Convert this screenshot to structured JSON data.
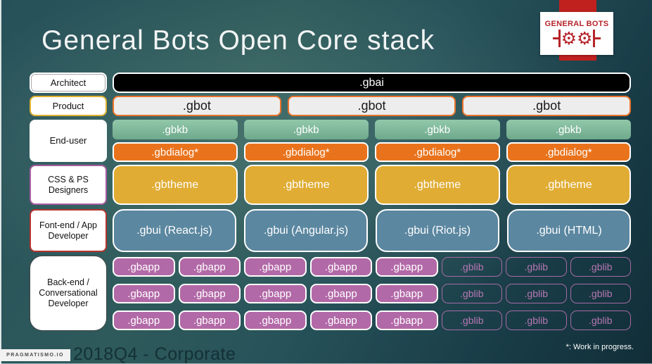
{
  "title": "General Bots Open Core stack",
  "logo": {
    "name": "GENERAL BOTS",
    "gear_icon": "⚙⚙"
  },
  "labels": {
    "architect": "Architect",
    "product": "Product",
    "end_user": "End-user",
    "designers_line1": "CSS & PS",
    "designers_line2": "Designers",
    "frontend_line1": "Font-end / App",
    "frontend_line2": "Developer",
    "backend_line1": "Back-end /",
    "backend_line2": "Conversational",
    "backend_line3": "Developer"
  },
  "stack": {
    "gbai": ".gbai",
    "gbot": [
      ".gbot",
      ".gbot",
      ".gbot"
    ],
    "gbkb": [
      ".gbkb",
      ".gbkb",
      ".gbkb",
      ".gbkb"
    ],
    "gbdialog": [
      ".gbdialog*",
      ".gbdialog*",
      ".gbdialog*",
      ".gbdialog*"
    ],
    "gbtheme": [
      ".gbtheme",
      ".gbtheme",
      ".gbtheme",
      ".gbtheme"
    ],
    "gbui": [
      ".gbui (React.js)",
      ".gbui (Angular.js)",
      ".gbui (Riot.js)",
      ".gbui (HTML)"
    ],
    "backend_rows": [
      [
        {
          "text": ".gbapp",
          "cls": "gbapp"
        },
        {
          "text": ".gbapp",
          "cls": "gbapp"
        },
        {
          "text": ".gbapp",
          "cls": "gbapp"
        },
        {
          "text": ".gbapp",
          "cls": "gbapp"
        },
        {
          "text": ".gbapp",
          "cls": "gbapp"
        },
        {
          "text": ".gblib",
          "cls": "gblib"
        },
        {
          "text": ".gblib",
          "cls": "gblib"
        },
        {
          "text": ".gblib",
          "cls": "gblib"
        }
      ],
      [
        {
          "text": ".gbapp",
          "cls": "gbapp"
        },
        {
          "text": ".gbapp",
          "cls": "gbapp"
        },
        {
          "text": ".gbapp",
          "cls": "gbapp"
        },
        {
          "text": ".gbapp",
          "cls": "gbapp"
        },
        {
          "text": ".gbapp",
          "cls": "gbapp"
        },
        {
          "text": ".gblib",
          "cls": "gblib"
        },
        {
          "text": ".gblib",
          "cls": "gblib"
        },
        {
          "text": ".gblib",
          "cls": "gblib"
        }
      ],
      [
        {
          "text": ".gbapp",
          "cls": "gbapp"
        },
        {
          "text": ".gbapp",
          "cls": "gbapp"
        },
        {
          "text": ".gbapp",
          "cls": "gbapp"
        },
        {
          "text": ".gbapp",
          "cls": "gbapp"
        },
        {
          "text": ".gbapp",
          "cls": "gbapp"
        },
        {
          "text": ".gblib",
          "cls": "gblib"
        },
        {
          "text": ".gblib",
          "cls": "gblib"
        },
        {
          "text": ".gblib",
          "cls": "gblib"
        }
      ]
    ]
  },
  "footer": {
    "brand": "PRAGMATISMO.IO",
    "caption": "2018Q4 - Corporate",
    "note": "*: Work in progress."
  },
  "colors": {
    "background_teal": "#2e5a5b",
    "gbai_fill": "#000000",
    "gbot_fill": "#ededed",
    "gbot_border": "#e8742c",
    "gbkb_fill": "#82bd9e",
    "gbdialog_fill": "#e9731c",
    "gbtheme_fill": "#e0ac33",
    "gbui_fill": "#5b87a0",
    "gbapp_fill": "#b269a7",
    "gblib_outline": "#a66ba4",
    "logo_red": "#c0211f",
    "label_gold_border": "#e0b12f",
    "label_purple_border": "#a85ca0",
    "label_red_border": "#b5342c"
  }
}
